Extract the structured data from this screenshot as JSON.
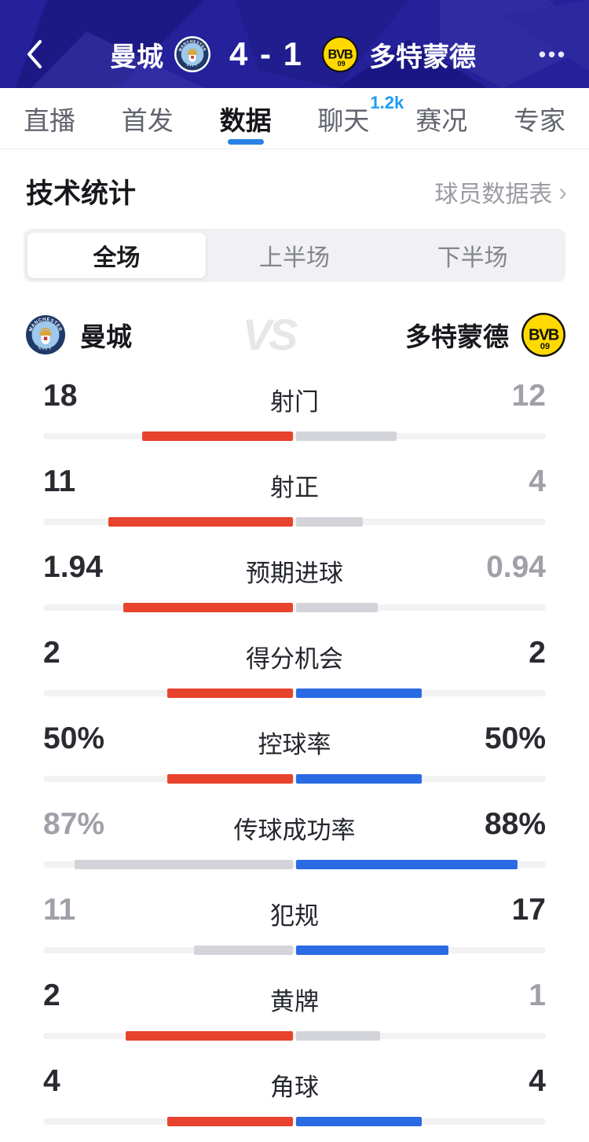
{
  "header": {
    "back_icon": "chevron-left",
    "home_team": "曼城",
    "home_badge_icon": "manchester-city-crest",
    "score": "4 - 1",
    "away_badge_icon": "borussia-dortmund-crest",
    "away_team": "多特蒙德",
    "more_icon": "ellipsis-horizontal",
    "more_glyph": "•••"
  },
  "tabs": {
    "items": [
      {
        "label": "直播",
        "active": false
      },
      {
        "label": "首发",
        "active": false
      },
      {
        "label": "数据",
        "active": true
      },
      {
        "label": "聊天",
        "active": false,
        "badge": "1.2k"
      },
      {
        "label": "赛况",
        "active": false
      },
      {
        "label": "专家",
        "active": false
      }
    ]
  },
  "section": {
    "title": "技术统计",
    "link": "球员数据表",
    "arrow": "›"
  },
  "segments": {
    "items": [
      {
        "label": "全场",
        "active": true
      },
      {
        "label": "上半场",
        "active": false
      },
      {
        "label": "下半场",
        "active": false
      }
    ]
  },
  "teams": {
    "home": "曼城",
    "away": "多特蒙德",
    "vs": "VS"
  },
  "colors": {
    "home_bar": "#e8432d",
    "away_bar": "#2a6be4",
    "lose_bar": "#d3d4d9",
    "track": "#f2f2f4",
    "tab_accent": "#2a82e4",
    "badge_blue": "#1e9df2",
    "header_bg": "#24219b"
  },
  "chart_data": {
    "type": "bar",
    "title": "技术统计 - 全场",
    "teams": [
      "曼城",
      "多特蒙德"
    ],
    "layout_note": "each stat: bars grow outward from center; fraction = share of half-track",
    "stats": [
      {
        "label": "射门",
        "home": "18",
        "away": "12",
        "home_frac": 0.6,
        "away_frac": 0.4,
        "home_color": "red",
        "away_color": "gray",
        "home_dim": false,
        "away_dim": true
      },
      {
        "label": "射正",
        "home": "11",
        "away": "4",
        "home_frac": 0.733,
        "away_frac": 0.267,
        "home_color": "red",
        "away_color": "gray",
        "home_dim": false,
        "away_dim": true
      },
      {
        "label": "预期进球",
        "home": "1.94",
        "away": "0.94",
        "home_frac": 0.674,
        "away_frac": 0.326,
        "home_color": "red",
        "away_color": "gray",
        "home_dim": false,
        "away_dim": true
      },
      {
        "label": "得分机会",
        "home": "2",
        "away": "2",
        "home_frac": 0.5,
        "away_frac": 0.5,
        "home_color": "red",
        "away_color": "blue",
        "home_dim": false,
        "away_dim": false
      },
      {
        "label": "控球率",
        "home": "50%",
        "away": "50%",
        "home_frac": 0.5,
        "away_frac": 0.5,
        "home_color": "red",
        "away_color": "blue",
        "home_dim": false,
        "away_dim": false
      },
      {
        "label": "传球成功率",
        "home": "87%",
        "away": "88%",
        "home_frac": 0.87,
        "away_frac": 0.88,
        "home_color": "gray",
        "away_color": "blue",
        "home_dim": true,
        "away_dim": false
      },
      {
        "label": "犯规",
        "home": "11",
        "away": "17",
        "home_frac": 0.393,
        "away_frac": 0.607,
        "home_color": "gray",
        "away_color": "blue",
        "home_dim": true,
        "away_dim": false
      },
      {
        "label": "黄牌",
        "home": "2",
        "away": "1",
        "home_frac": 0.667,
        "away_frac": 0.333,
        "home_color": "red",
        "away_color": "gray",
        "home_dim": false,
        "away_dim": true
      },
      {
        "label": "角球",
        "home": "4",
        "away": "4",
        "home_frac": 0.5,
        "away_frac": 0.5,
        "home_color": "red",
        "away_color": "blue",
        "home_dim": false,
        "away_dim": false
      }
    ]
  }
}
